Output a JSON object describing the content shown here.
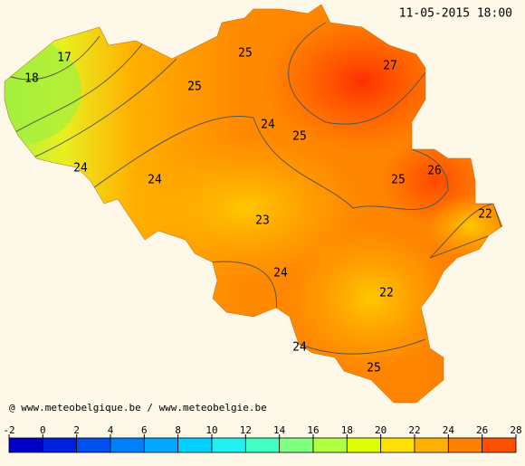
{
  "timestamp": "11-05-2015 18:00",
  "credit": "@ www.meteobelgique.be / www.meteobelgie.be",
  "isotherm_labels": [
    17,
    18,
    25,
    27,
    25,
    24,
    25,
    24,
    24,
    25,
    26,
    22,
    23,
    24,
    22,
    24,
    25
  ],
  "colorbar": {
    "ticks": [
      -2,
      0,
      2,
      4,
      6,
      8,
      10,
      12,
      14,
      16,
      18,
      20,
      22,
      24,
      26,
      28
    ],
    "colors": [
      "#0000c8",
      "#0020e0",
      "#0050f0",
      "#0080f8",
      "#00a8ff",
      "#00d0ff",
      "#20f0f0",
      "#40ffc0",
      "#80ff80",
      "#b0ff40",
      "#e0ff00",
      "#ffe000",
      "#ffb000",
      "#ff8000",
      "#ff5000"
    ]
  }
}
